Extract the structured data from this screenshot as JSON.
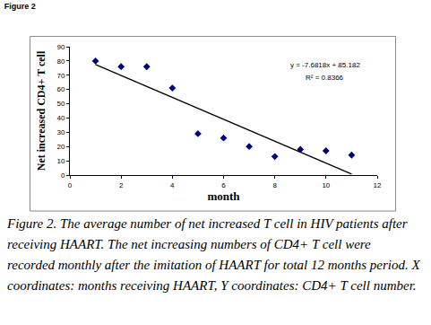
{
  "chart_data": {
    "type": "scatter",
    "title": "Figure 2",
    "x_label": "month",
    "y_label": "Net increased CD4+ T cell",
    "series": [
      {
        "type": "scatter",
        "x": [
          1,
          2,
          3,
          4,
          5,
          6,
          7,
          8,
          9,
          10,
          11
        ],
        "values": [
          80,
          76,
          76,
          61,
          29,
          26,
          20,
          13,
          18,
          17,
          14
        ],
        "color": "#000080",
        "marker": "diamond"
      },
      {
        "type": "line",
        "x": [
          1,
          11
        ],
        "values": [
          77.5,
          0.68
        ],
        "color": "#000000",
        "line_style": "solid"
      }
    ],
    "xlim": [
      0,
      12
    ],
    "xticks": [
      0,
      2,
      4,
      6,
      8,
      10,
      12
    ],
    "ylim": [
      0,
      90
    ],
    "yticks": [
      0,
      10,
      20,
      30,
      40,
      50,
      60,
      70,
      80,
      90
    ],
    "grid": false,
    "annotations": [
      "y = -7.6818x + 85.182",
      "R² = 0.8366"
    ],
    "caption": "Figure 2. The average number of net increased T cell in HIV patients after receiving HAART. The net increasing numbers of CD4+ T cell were recorded monthly after the imitation of HAART for total 12 months period. X coordinates: months receiving HAART, Y coordinates: CD4+ T cell number."
  }
}
